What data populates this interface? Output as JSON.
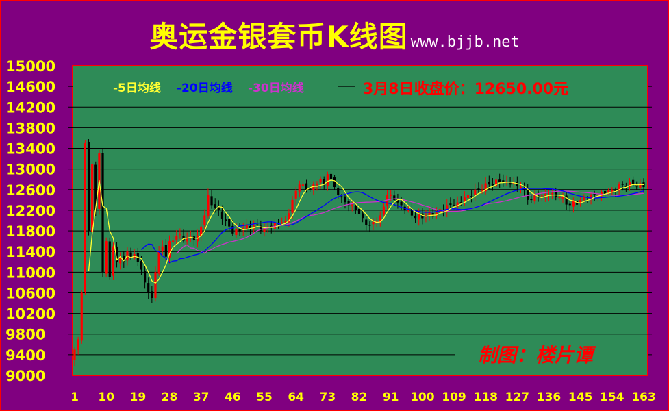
{
  "header": {
    "title": "奥运金银套币K线图",
    "site": "www.bjjb.net"
  },
  "legend": {
    "ma5": "-5日均线",
    "ma20": "-20日均线",
    "ma30": "-30日均线"
  },
  "close_note": "3月8日收盘价：12650.00元",
  "credit": "制图：楼片谭",
  "colors": {
    "background": "#800080",
    "plot": "#2e8b57",
    "border": "#ff0000",
    "title": "#ffff00",
    "y_labels": "#ffff00",
    "x_labels": "#ffff00",
    "up_candle": "#ff0000",
    "down_candle": "#000000",
    "ma5": "#ffff33",
    "ma20": "#0000ff",
    "ma30": "#cc33cc",
    "note": "#ff0000",
    "credit": "#ff0000"
  },
  "chart_data": {
    "type": "candlestick",
    "title": "奥运金银套币K线图",
    "ylim": [
      9000,
      15000
    ],
    "y_ticks": [
      9000,
      9400,
      9800,
      10200,
      10600,
      11000,
      11400,
      11800,
      12200,
      12600,
      13000,
      13400,
      13800,
      14200,
      14600,
      15000
    ],
    "x_range": [
      1,
      163
    ],
    "x_ticks": [
      1,
      10,
      19,
      28,
      37,
      46,
      55,
      64,
      73,
      82,
      91,
      100,
      109,
      118,
      127,
      136,
      145,
      154,
      163
    ],
    "grid": "horizontal",
    "series": [
      {
        "name": "-5日均线",
        "color": "#ffff33"
      },
      {
        "name": "-20日均线",
        "color": "#0000ff"
      },
      {
        "name": "-30日均线",
        "color": "#cc33cc"
      }
    ],
    "close_anchors": [
      [
        1,
        9500
      ],
      [
        2,
        9700
      ],
      [
        3,
        10600
      ],
      [
        4,
        13500
      ],
      [
        5,
        11800
      ],
      [
        6,
        13100
      ],
      [
        7,
        12200
      ],
      [
        8,
        13300
      ],
      [
        9,
        11000
      ],
      [
        10,
        11600
      ],
      [
        11,
        10900
      ],
      [
        12,
        11500
      ],
      [
        13,
        11200
      ],
      [
        14,
        11300
      ],
      [
        15,
        11200
      ],
      [
        16,
        11400
      ],
      [
        17,
        11300
      ],
      [
        18,
        11350
      ],
      [
        19,
        11200
      ],
      [
        20,
        11050
      ],
      [
        21,
        10800
      ],
      [
        22,
        10600
      ],
      [
        23,
        10500
      ],
      [
        24,
        11000
      ],
      [
        25,
        11400
      ],
      [
        26,
        11500
      ],
      [
        27,
        11300
      ],
      [
        28,
        11600
      ],
      [
        30,
        11700
      ],
      [
        33,
        11650
      ],
      [
        36,
        11700
      ],
      [
        38,
        12100
      ],
      [
        39,
        12500
      ],
      [
        40,
        12300
      ],
      [
        42,
        12200
      ],
      [
        44,
        12000
      ],
      [
        46,
        11750
      ],
      [
        49,
        11850
      ],
      [
        52,
        11900
      ],
      [
        55,
        11850
      ],
      [
        58,
        11950
      ],
      [
        61,
        12000
      ],
      [
        63,
        12400
      ],
      [
        65,
        12700
      ],
      [
        67,
        12600
      ],
      [
        69,
        12700
      ],
      [
        71,
        12800
      ],
      [
        72,
        12700
      ],
      [
        73,
        12900
      ],
      [
        75,
        12650
      ],
      [
        77,
        12450
      ],
      [
        79,
        12300
      ],
      [
        81,
        12200
      ],
      [
        83,
        12050
      ],
      [
        85,
        11900
      ],
      [
        88,
        12100
      ],
      [
        90,
        12500
      ],
      [
        92,
        12400
      ],
      [
        95,
        12200
      ],
      [
        98,
        12050
      ],
      [
        101,
        12100
      ],
      [
        104,
        12150
      ],
      [
        107,
        12300
      ],
      [
        110,
        12350
      ],
      [
        113,
        12500
      ],
      [
        116,
        12600
      ],
      [
        119,
        12700
      ],
      [
        122,
        12750
      ],
      [
        125,
        12700
      ],
      [
        128,
        12650
      ],
      [
        130,
        12400
      ],
      [
        133,
        12450
      ],
      [
        136,
        12500
      ],
      [
        139,
        12450
      ],
      [
        142,
        12300
      ],
      [
        145,
        12400
      ],
      [
        148,
        12500
      ],
      [
        151,
        12550
      ],
      [
        154,
        12600
      ],
      [
        157,
        12700
      ],
      [
        160,
        12700
      ],
      [
        163,
        12650
      ]
    ],
    "ma_note": "moving averages computed from close series"
  }
}
